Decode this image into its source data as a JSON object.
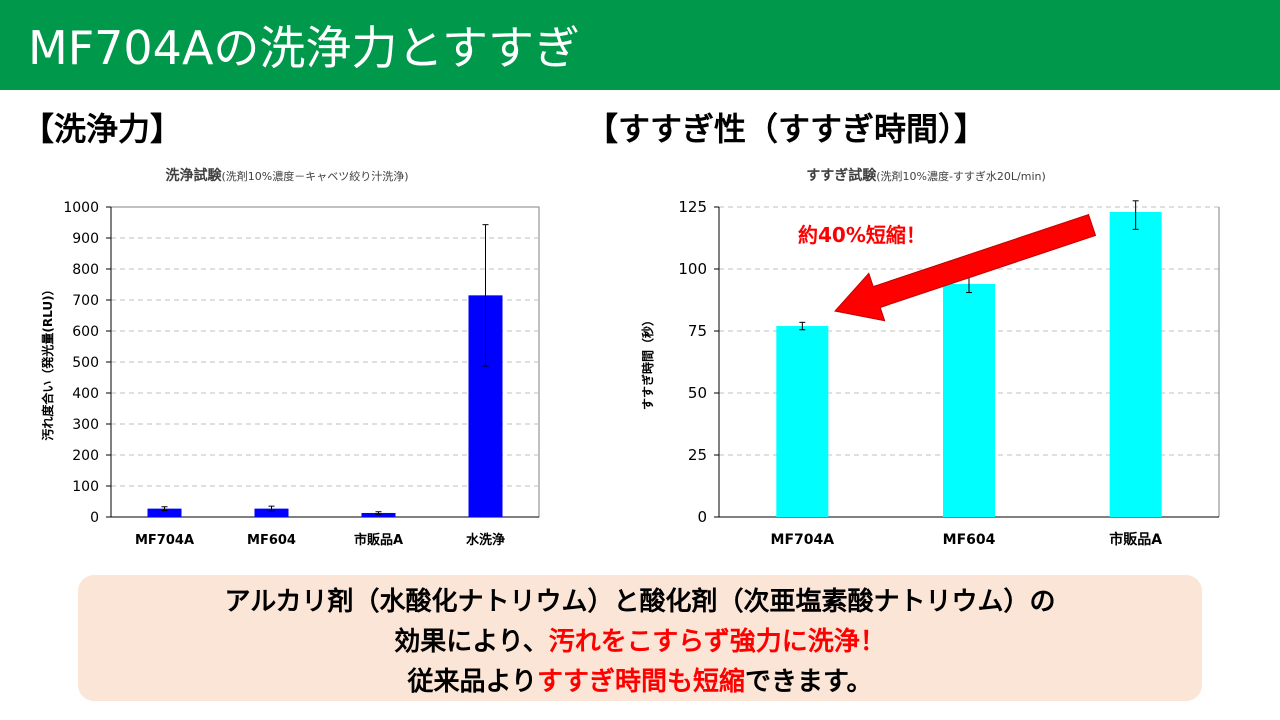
{
  "header": {
    "title": "MF704Aの洗浄力とすすぎ"
  },
  "sections": {
    "left_title": "【洗浄力】",
    "right_title": "【すすぎ性（すすぎ時間）】"
  },
  "annotation": {
    "text": "約40%短縮！"
  },
  "callout": {
    "line1": "アルカリ剤（水酸化ナトリウム）と酸化剤（次亜塩素酸ナトリウム）の",
    "line2_a": "効果により、",
    "line2_b": "汚れをこすらず強力に洗浄！",
    "line3_a": "従来品より",
    "line3_b": "すすぎ時間も短縮",
    "line3_c": "できます。"
  },
  "colors": {
    "header": "#00984a",
    "left_bars": "#0000ff",
    "right_bars": "#00ffff",
    "arrow": "#ff0000"
  },
  "chart_data": [
    {
      "type": "bar",
      "title": "洗浄試験",
      "subtitle": "(洗剤10%濃度－キャベツ絞り汁洗浄)",
      "xlabel": "",
      "ylabel": "汚れ度合い（発光量(RLU)）",
      "categories": [
        "MF704A",
        "MF604",
        "市販品A",
        "水洗浄"
      ],
      "values": [
        27,
        27,
        13,
        715
      ],
      "errors": [
        6,
        8,
        4,
        228
      ],
      "ylim": [
        0,
        1000
      ],
      "yticks": [
        0,
        100,
        200,
        300,
        400,
        500,
        600,
        700,
        800,
        900,
        1000
      ],
      "grid": true
    },
    {
      "type": "bar",
      "title": "すすぎ試験",
      "subtitle": "(洗剤10%濃度-すすぎ水20L/min)",
      "xlabel": "",
      "ylabel": "すすぎ時間（秒）",
      "categories": [
        "MF704A",
        "MF604",
        "市販品A"
      ],
      "values": [
        77,
        94,
        123
      ],
      "errors": [
        1.5,
        3.5,
        7
      ],
      "ylim": [
        0,
        125
      ],
      "yticks": [
        0,
        25,
        50,
        75,
        100,
        125
      ],
      "grid": true
    }
  ]
}
